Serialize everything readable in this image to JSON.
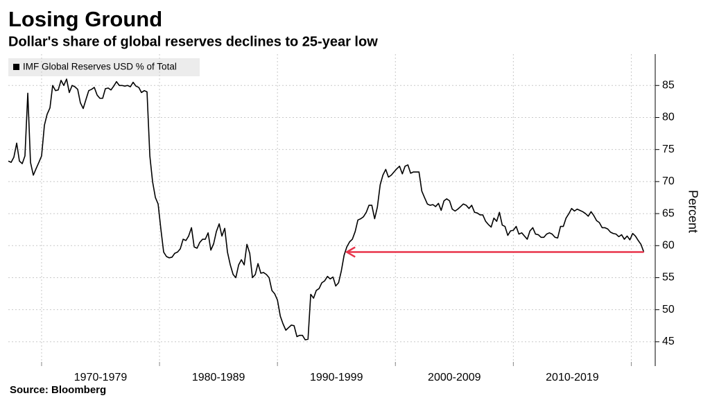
{
  "chart_data": {
    "type": "line",
    "title": "Losing Ground",
    "subtitle": "Dollar's share of global reserves declines to 25-year low",
    "source": "Source: Bloomberg",
    "y_axis_label": "Percent",
    "ylim": [
      41.2,
      89.9
    ],
    "yticks": [
      45,
      50,
      55,
      60,
      65,
      70,
      75,
      80,
      85
    ],
    "xlim": [
      1967.18,
      2022.03
    ],
    "xgrid": [
      1970,
      1980,
      1990,
      2000,
      2010,
      2020
    ],
    "xticks": [
      {
        "value": 1975,
        "label": "1970-1979"
      },
      {
        "value": 1985,
        "label": "1980-1989"
      },
      {
        "value": 1995,
        "label": "1990-1999"
      },
      {
        "value": 2005,
        "label": "2000-2009"
      },
      {
        "value": 2015,
        "label": "2010-2019"
      }
    ],
    "grid": true,
    "legend": "top-left",
    "reference": {
      "value": 59,
      "x_start": 1995.88,
      "x_end": 2021.06,
      "color": "#e8334a"
    },
    "x": [
      1967.18,
      1967.42,
      1967.65,
      1967.89,
      1968.12,
      1968.36,
      1968.59,
      1968.83,
      1969.06,
      1969.3,
      1969.53,
      1969.77,
      1970.0,
      1970.24,
      1970.47,
      1970.71,
      1970.94,
      1971.18,
      1971.41,
      1971.65,
      1971.88,
      1972.12,
      1972.35,
      1972.59,
      1972.82,
      1973.06,
      1973.29,
      1973.53,
      1973.76,
      1974.0,
      1974.24,
      1974.47,
      1974.71,
      1974.94,
      1975.18,
      1975.41,
      1975.65,
      1975.88,
      1976.12,
      1976.35,
      1976.59,
      1976.82,
      1977.06,
      1977.29,
      1977.53,
      1977.76,
      1978.0,
      1978.24,
      1978.47,
      1978.71,
      1978.94,
      1979.18,
      1979.41,
      1979.65,
      1979.88,
      1980.12,
      1980.35,
      1980.59,
      1980.82,
      1981.06,
      1981.29,
      1981.53,
      1981.76,
      1982.0,
      1982.24,
      1982.47,
      1982.71,
      1982.94,
      1983.18,
      1983.41,
      1983.65,
      1983.88,
      1984.12,
      1984.35,
      1984.59,
      1984.82,
      1985.06,
      1985.29,
      1985.53,
      1985.76,
      1986.0,
      1986.24,
      1986.47,
      1986.71,
      1986.94,
      1987.18,
      1987.41,
      1987.65,
      1987.88,
      1988.12,
      1988.35,
      1988.59,
      1988.82,
      1989.06,
      1989.29,
      1989.53,
      1989.76,
      1990.0,
      1990.24,
      1990.47,
      1990.71,
      1990.94,
      1991.18,
      1991.41,
      1991.65,
      1991.88,
      1992.12,
      1992.35,
      1992.59,
      1992.82,
      1993.06,
      1993.29,
      1993.53,
      1993.76,
      1994.0,
      1994.24,
      1994.47,
      1994.71,
      1994.94,
      1995.18,
      1995.41,
      1995.65,
      1995.88,
      1996.12,
      1996.35,
      1996.59,
      1996.82,
      1997.06,
      1997.29,
      1997.53,
      1997.76,
      1998.0,
      1998.24,
      1998.47,
      1998.71,
      1998.94,
      1999.18,
      1999.41,
      1999.65,
      1999.88,
      2000.12,
      2000.35,
      2000.59,
      2000.82,
      2001.06,
      2001.29,
      2001.53,
      2001.76,
      2002.0,
      2002.24,
      2002.47,
      2002.71,
      2002.94,
      2003.18,
      2003.41,
      2003.65,
      2003.88,
      2004.12,
      2004.35,
      2004.59,
      2004.82,
      2005.06,
      2005.29,
      2005.53,
      2005.76,
      2006.0,
      2006.24,
      2006.47,
      2006.71,
      2006.94,
      2007.18,
      2007.41,
      2007.65,
      2007.88,
      2008.12,
      2008.35,
      2008.59,
      2008.82,
      2009.06,
      2009.29,
      2009.53,
      2009.76,
      2010.0,
      2010.24,
      2010.47,
      2010.71,
      2010.94,
      2011.18,
      2011.41,
      2011.65,
      2011.88,
      2012.12,
      2012.35,
      2012.59,
      2012.82,
      2013.06,
      2013.29,
      2013.53,
      2013.76,
      2014.0,
      2014.24,
      2014.47,
      2014.71,
      2014.94,
      2015.18,
      2015.41,
      2015.65,
      2015.88,
      2016.12,
      2016.35,
      2016.59,
      2016.82,
      2017.06,
      2017.29,
      2017.53,
      2017.76,
      2018.0,
      2018.24,
      2018.47,
      2018.71,
      2018.94,
      2019.18,
      2019.41,
      2019.65,
      2019.88,
      2020.12,
      2020.35,
      2020.59,
      2020.82,
      2021.06
    ],
    "series": [
      {
        "name": "IMF Global Reserves USD % of Total",
        "color": "#000000",
        "values": [
          73.2,
          73,
          73.8,
          76,
          73.2,
          72.8,
          74,
          83.8,
          73,
          71,
          72,
          73,
          74,
          78.8,
          80.5,
          81.5,
          85,
          84.2,
          84.3,
          85.8,
          85,
          86,
          83.9,
          85,
          84.8,
          84.4,
          82.3,
          81.4,
          82.8,
          84.2,
          84.4,
          84.7,
          83.5,
          83,
          83,
          84.5,
          84.6,
          84.3,
          84.9,
          85.6,
          85,
          85,
          84.9,
          85,
          84.8,
          85.5,
          84.9,
          84.7,
          83.9,
          84.2,
          84,
          74,
          70,
          67.5,
          66.5,
          62.5,
          59,
          58.3,
          58.1,
          58.2,
          58.8,
          59,
          59.5,
          61,
          60.8,
          61.5,
          62.8,
          59.8,
          59.6,
          60.5,
          61,
          61,
          62,
          59.3,
          60.3,
          62.2,
          63.4,
          61.5,
          62.7,
          59,
          57,
          55.5,
          55,
          57,
          57.8,
          57,
          60.2,
          58.8,
          55,
          55.5,
          57.2,
          55.7,
          55.8,
          55.5,
          55,
          53,
          52.5,
          51.5,
          49,
          47.8,
          46.8,
          47.2,
          47.6,
          47.5,
          45.8,
          46,
          46,
          45.3,
          45.4,
          52.4,
          51.8,
          53,
          53.3,
          54.2,
          54.5,
          55.2,
          54.8,
          55.1,
          53.7,
          54.2,
          56,
          58.5,
          59.8,
          60.6,
          61,
          62.2,
          64,
          64.2,
          64.5,
          65.2,
          66.3,
          66.3,
          64.2,
          66,
          69.5,
          71,
          71.9,
          70.7,
          71,
          71.5,
          72,
          72.4,
          71.2,
          72.4,
          72.6,
          71.3,
          71.5,
          71.5,
          71.5,
          68.5,
          67.5,
          66.5,
          66.3,
          66.4,
          66.1,
          66.6,
          65.5,
          67,
          67.3,
          67,
          65.7,
          65.4,
          65.7,
          66.1,
          66.5,
          66.3,
          65.8,
          66.3,
          65.2,
          65.1,
          64.8,
          64.8,
          63.8,
          63.3,
          62.9,
          64.3,
          63.8,
          65.2,
          63.2,
          63,
          61.6,
          62.3,
          62.4,
          63,
          61.8,
          62,
          61.5,
          61,
          62.3,
          62.8,
          61.8,
          61.7,
          61.3,
          61.3,
          61.8,
          62,
          61.8,
          61.3,
          61.2,
          63,
          63,
          64.3,
          65,
          65.8,
          65.4,
          65.7,
          65.5,
          65.3,
          65,
          64.6,
          65.3,
          64.7,
          63.9,
          63.6,
          62.8,
          62.8,
          62.6,
          62.1,
          61.9,
          61.8,
          61.4,
          61.7,
          61,
          61.5,
          60.9,
          61.9,
          61.5,
          60.8,
          60.2,
          59
        ]
      }
    ]
  }
}
